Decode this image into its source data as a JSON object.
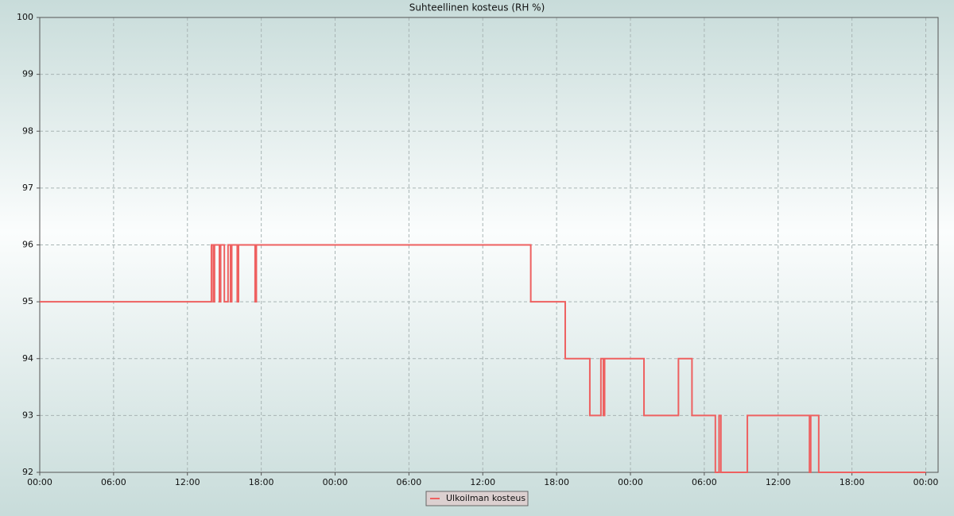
{
  "chart_data": {
    "type": "line",
    "step": "post",
    "title": "Suhteellinen kosteus (RH %)",
    "xlim": [
      0,
      73
    ],
    "xticks": [
      {
        "value": 0,
        "label": "00:00"
      },
      {
        "value": 6,
        "label": "06:00"
      },
      {
        "value": 12,
        "label": "12:00"
      },
      {
        "value": 18,
        "label": "18:00"
      },
      {
        "value": 24,
        "label": "00:00"
      },
      {
        "value": 30,
        "label": "06:00"
      },
      {
        "value": 36,
        "label": "12:00"
      },
      {
        "value": 42,
        "label": "18:00"
      },
      {
        "value": 48,
        "label": "00:00"
      },
      {
        "value": 54,
        "label": "06:00"
      },
      {
        "value": 60,
        "label": "12:00"
      },
      {
        "value": 66,
        "label": "18:00"
      },
      {
        "value": 72,
        "label": "00:00"
      }
    ],
    "ylim": [
      92,
      100
    ],
    "yticks": [
      92,
      93,
      94,
      95,
      96,
      97,
      98,
      99,
      100
    ],
    "grid": true,
    "series": [
      {
        "name": "Ulkoilman kosteus",
        "color": "#ee6060",
        "x": [
          0,
          13.95,
          14.1,
          14.2,
          14.6,
          14.7,
          15.0,
          15.3,
          15.5,
          15.6,
          16.05,
          16.15,
          17.5,
          17.6,
          39.9,
          42.7,
          44.7,
          45.6,
          45.8,
          45.9,
          49.1,
          51.9,
          53.0,
          54.9,
          55.2,
          55.35,
          57.5,
          62.55,
          62.65,
          63.3,
          72
        ],
        "values": [
          95,
          96,
          95,
          96,
          95,
          96,
          95,
          96,
          95,
          96,
          95,
          96,
          95,
          96,
          95,
          94,
          93,
          94,
          93,
          94,
          93,
          94,
          93,
          92,
          93,
          92,
          93,
          92,
          93,
          92,
          92
        ]
      }
    ]
  }
}
